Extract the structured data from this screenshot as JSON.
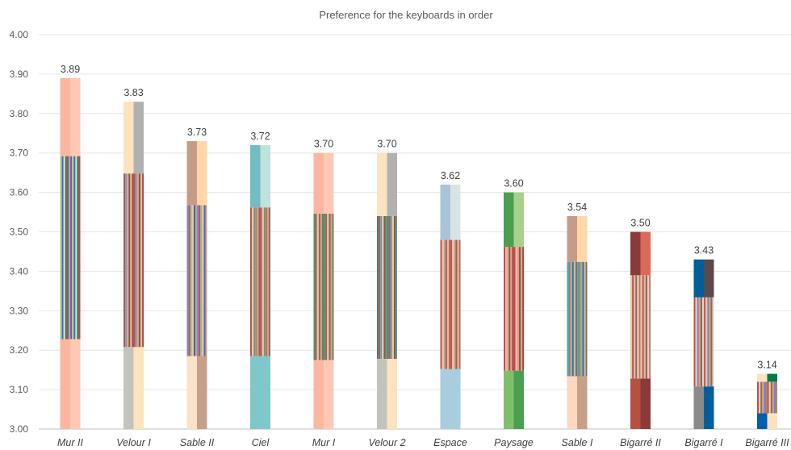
{
  "chart_data": {
    "type": "bar",
    "title": "Preference for the keyboards in order",
    "xlabel": "",
    "ylabel": "",
    "ylim": [
      3.0,
      4.0
    ],
    "yticks": [
      "3.00",
      "3.10",
      "3.20",
      "3.30",
      "3.40",
      "3.50",
      "3.60",
      "3.70",
      "3.80",
      "3.90",
      "4.00"
    ],
    "grid": true,
    "legend": "none",
    "categories": [
      "Mur II",
      "Velour I",
      "Sable II",
      "Ciel",
      "Mur I",
      "Velour 2",
      "Espace",
      "Paysage",
      "Sable I",
      "Bigarré II",
      "Bigarré I",
      "Bigarré III"
    ],
    "values": [
      3.89,
      3.83,
      3.73,
      3.72,
      3.7,
      3.7,
      3.62,
      3.6,
      3.54,
      3.5,
      3.43,
      3.14
    ],
    "data_labels": [
      "3.89",
      "3.83",
      "3.73",
      "3.72",
      "3.70",
      "3.70",
      "3.62",
      "3.60",
      "3.54",
      "3.50",
      "3.43",
      "3.14"
    ],
    "swatches": [
      {
        "bands": [
          {
            "from": 3.0,
            "to": 3.228,
            "colors": [
              "#fbb6a0",
              "#fdc9b5"
            ]
          },
          {
            "from": 3.228,
            "to": 3.692,
            "stripes": [
              "#a9c98f",
              "#3d6fb5",
              "#e8d9c0",
              "#2d7a4f",
              "#b84a4a",
              "#86b2d6",
              "#7a5a8c"
            ]
          },
          {
            "from": 3.692,
            "to": 3.89,
            "colors": [
              "#fbb6a0",
              "#fdc9b5"
            ]
          }
        ]
      },
      {
        "bands": [
          {
            "from": 3.0,
            "to": 3.208,
            "colors": [
              "#c3c3bd",
              "#fde3bd"
            ]
          },
          {
            "from": 3.208,
            "to": 3.648,
            "stripes": [
              "#c0504d",
              "#6a9fc2",
              "#e89a8a",
              "#8a5a3c",
              "#d8c4a0",
              "#b83a3a"
            ]
          },
          {
            "from": 3.648,
            "to": 3.83,
            "colors": [
              "#fde3bd",
              "#b1b1b1"
            ]
          }
        ]
      },
      {
        "bands": [
          {
            "from": 3.0,
            "to": 3.185,
            "colors": [
              "#fde0c8",
              "#c6a08a"
            ]
          },
          {
            "from": 3.185,
            "to": 3.568,
            "stripes": [
              "#6b8fc4",
              "#c0504d",
              "#9ab88a",
              "#e0c8a8",
              "#4a6aa0",
              "#d89a8a"
            ]
          },
          {
            "from": 3.568,
            "to": 3.73,
            "colors": [
              "#c49c88",
              "#fdd7a8"
            ]
          }
        ]
      },
      {
        "bands": [
          {
            "from": 3.0,
            "to": 3.185,
            "colors": [
              "#80c7c9",
              "#80c7c9"
            ]
          },
          {
            "from": 3.185,
            "to": 3.562,
            "stripes": [
              "#c0504d",
              "#e8c8a8",
              "#6a9a7a",
              "#b87a6a",
              "#d89a8a",
              "#8a6a5a"
            ]
          },
          {
            "from": 3.562,
            "to": 3.72,
            "colors": [
              "#72bcc4",
              "#bfe2dc"
            ]
          }
        ]
      },
      {
        "bands": [
          {
            "from": 3.0,
            "to": 3.175,
            "colors": [
              "#fbb6a0",
              "#fdc9b5"
            ]
          },
          {
            "from": 3.175,
            "to": 3.546,
            "stripes": [
              "#3a9a5a",
              "#c0504d",
              "#e8c8a8",
              "#8a6a5a",
              "#d89a8a",
              "#5a8a6a"
            ]
          },
          {
            "from": 3.546,
            "to": 3.7,
            "colors": [
              "#fbb6a0",
              "#fdc9b5"
            ]
          }
        ]
      },
      {
        "bands": [
          {
            "from": 3.0,
            "to": 3.178,
            "colors": [
              "#c3c3bd",
              "#fde3bd"
            ]
          },
          {
            "from": 3.178,
            "to": 3.54,
            "stripes": [
              "#3a8a6a",
              "#c0504d",
              "#6a9ab8",
              "#e8c8a8",
              "#8a5a4a",
              "#5aa07a"
            ]
          },
          {
            "from": 3.54,
            "to": 3.7,
            "colors": [
              "#fde3bd",
              "#b1b1b1"
            ]
          }
        ]
      },
      {
        "bands": [
          {
            "from": 3.0,
            "to": 3.152,
            "colors": [
              "#a8cede",
              "#a8cede"
            ]
          },
          {
            "from": 3.152,
            "to": 3.48,
            "stripes": [
              "#c0504d",
              "#e8c8a8",
              "#d89a8a",
              "#8a6a5a",
              "#f0b8a0",
              "#b86a5a"
            ]
          },
          {
            "from": 3.48,
            "to": 3.62,
            "colors": [
              "#a8c4d8",
              "#d8e4e4"
            ]
          }
        ]
      },
      {
        "bands": [
          {
            "from": 3.0,
            "to": 3.148,
            "colors": [
              "#7ebf6a",
              "#4aa050"
            ]
          },
          {
            "from": 3.148,
            "to": 3.462,
            "stripes": [
              "#c0504d",
              "#f0b8a0",
              "#e89a8a",
              "#8a5a4a",
              "#d8a890",
              "#b83a3a"
            ]
          },
          {
            "from": 3.462,
            "to": 3.6,
            "colors": [
              "#4aa050",
              "#a9d08e"
            ]
          }
        ]
      },
      {
        "bands": [
          {
            "from": 3.0,
            "to": 3.134,
            "colors": [
              "#fdd7c0",
              "#c6a08a"
            ]
          },
          {
            "from": 3.134,
            "to": 3.424,
            "stripes": [
              "#6b8fc4",
              "#5a9a6a",
              "#c0a080",
              "#4a6aa0",
              "#b8c8a0",
              "#8a6a5a"
            ]
          },
          {
            "from": 3.424,
            "to": 3.54,
            "colors": [
              "#c49c88",
              "#fdd7a8"
            ]
          }
        ]
      },
      {
        "bands": [
          {
            "from": 3.0,
            "to": 3.128,
            "colors": [
              "#b5513f",
              "#8a3a3a"
            ]
          },
          {
            "from": 3.128,
            "to": 3.39,
            "stripes": [
              "#e8c8a8",
              "#c0504d",
              "#d8b8a0",
              "#8a6a5a",
              "#f0d0b8",
              "#b87a6a"
            ]
          },
          {
            "from": 3.39,
            "to": 3.5,
            "colors": [
              "#8a3a3a",
              "#d86a5a"
            ]
          }
        ]
      },
      {
        "bands": [
          {
            "from": 3.0,
            "to": 3.108,
            "colors": [
              "#8a8a8a",
              "#005f9a"
            ]
          },
          {
            "from": 3.108,
            "to": 3.334,
            "stripes": [
              "#c0504d",
              "#e8c8a8",
              "#6a8ab8",
              "#d89a8a",
              "#8a6a5a",
              "#f0d0b8"
            ]
          },
          {
            "from": 3.334,
            "to": 3.43,
            "colors": [
              "#005f9a",
              "#5a4a4a"
            ]
          }
        ]
      },
      {
        "bands": [
          {
            "from": 3.0,
            "to": 3.04,
            "colors": [
              "#005fa8",
              "#fde3bd"
            ]
          },
          {
            "from": 3.04,
            "to": 3.12,
            "stripes": [
              "#c0504d",
              "#e8c8a8",
              "#8a6a5a",
              "#d89a8a",
              "#6a8ab8",
              "#b87a6a"
            ]
          },
          {
            "from": 3.12,
            "to": 3.14,
            "colors": [
              "#fde3bd",
              "#007a4a"
            ]
          }
        ]
      }
    ]
  }
}
